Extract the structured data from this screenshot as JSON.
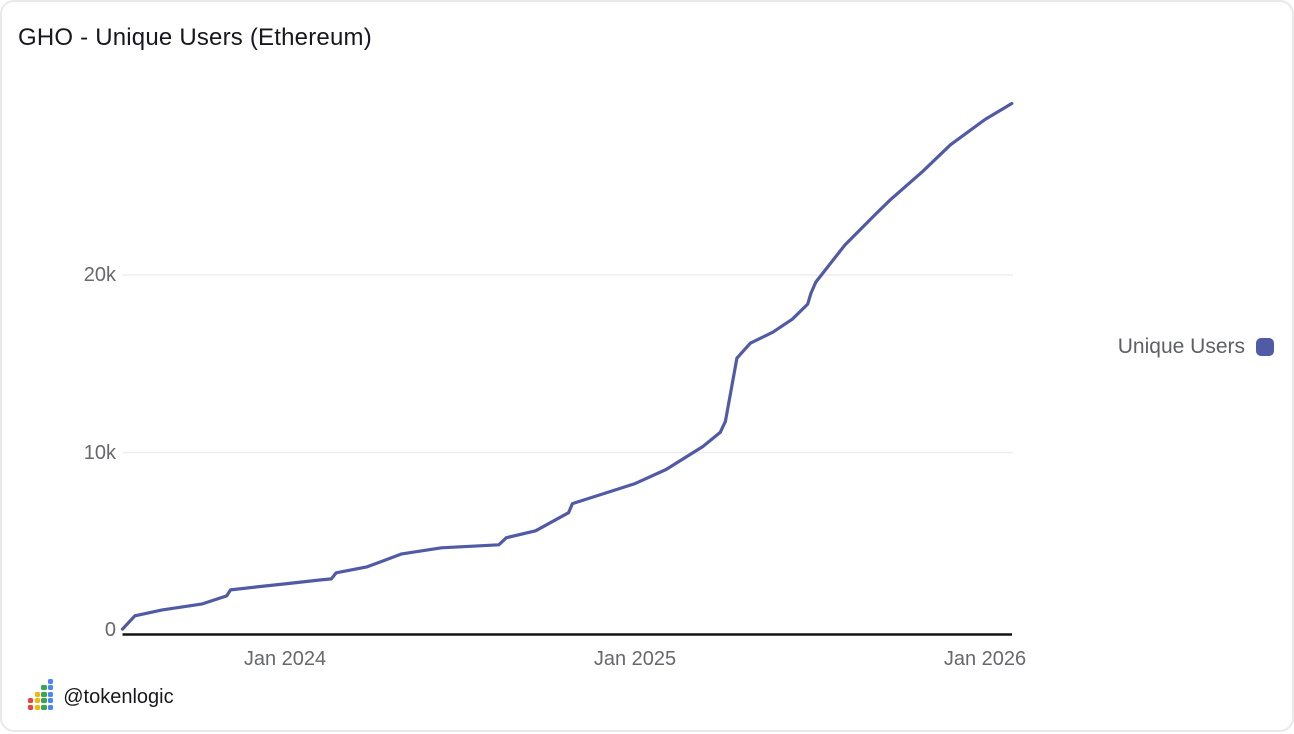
{
  "header": {
    "title": "GHO - Unique Users (Ethereum)"
  },
  "legend": {
    "label": "Unique Users"
  },
  "footer": {
    "handle": "@tokenlogic",
    "logo_icon": "mini-bar-chart-icon",
    "logo_columns": [
      {
        "color": "#e8453c",
        "cells": 2
      },
      {
        "color": "#f5b50a",
        "cells": 3
      },
      {
        "color": "#37a852",
        "cells": 4
      },
      {
        "color": "#4c86f5",
        "cells": 5
      }
    ]
  },
  "colors": {
    "series": "#515AA5",
    "grid": "#EDEDED",
    "axis": "#141414",
    "tick_text": "#66686d",
    "card_border": "#e9e9e9"
  },
  "chart_data": {
    "type": "line",
    "title": "GHO - Unique Users (Ethereum)",
    "xlabel": "",
    "ylabel": "",
    "grid": "horizontal-only",
    "legend_position": "right",
    "ylim": [
      0,
      30000
    ],
    "xlim_dates": [
      "2023-07-14",
      "2026-01-29"
    ],
    "yticks": [
      {
        "label": "0",
        "value": 0
      },
      {
        "label": "10k",
        "value": 10000
      },
      {
        "label": "20k",
        "value": 20000
      }
    ],
    "xticks": [
      {
        "label": "Jan 2024",
        "t": 2024
      },
      {
        "label": "Jan 2025",
        "t": 2025
      },
      {
        "label": "Jan 2026",
        "t": 2026
      }
    ],
    "series": [
      {
        "name": "Unique Users",
        "color": "#515AA5",
        "points": [
          {
            "date": "2023-07-14",
            "value": 50
          },
          {
            "date": "2023-07-27",
            "value": 800
          },
          {
            "date": "2023-08-25",
            "value": 1130
          },
          {
            "date": "2023-10-06",
            "value": 1470
          },
          {
            "date": "2023-11-01",
            "value": 1920
          },
          {
            "date": "2023-11-05",
            "value": 2260
          },
          {
            "date": "2023-12-02",
            "value": 2430
          },
          {
            "date": "2024-01-01",
            "value": 2600
          },
          {
            "date": "2024-02-08",
            "value": 2820
          },
          {
            "date": "2024-02-19",
            "value": 2880
          },
          {
            "date": "2024-02-24",
            "value": 3220
          },
          {
            "date": "2024-03-26",
            "value": 3560
          },
          {
            "date": "2024-05-01",
            "value": 4290
          },
          {
            "date": "2024-06-12",
            "value": 4630
          },
          {
            "date": "2024-08-11",
            "value": 4800
          },
          {
            "date": "2024-08-19",
            "value": 5200
          },
          {
            "date": "2024-09-19",
            "value": 5590
          },
          {
            "date": "2024-10-23",
            "value": 6610
          },
          {
            "date": "2024-10-27",
            "value": 7120
          },
          {
            "date": "2024-11-26",
            "value": 7630
          },
          {
            "date": "2025-01-01",
            "value": 8250
          },
          {
            "date": "2025-02-03",
            "value": 9040
          },
          {
            "date": "2025-03-11",
            "value": 10340
          },
          {
            "date": "2025-03-29",
            "value": 11130
          },
          {
            "date": "2025-04-04",
            "value": 11750
          },
          {
            "date": "2025-04-16",
            "value": 15310
          },
          {
            "date": "2025-04-30",
            "value": 16160
          },
          {
            "date": "2025-05-23",
            "value": 16780
          },
          {
            "date": "2025-06-13",
            "value": 17510
          },
          {
            "date": "2025-06-29",
            "value": 18360
          },
          {
            "date": "2025-07-02",
            "value": 18980
          },
          {
            "date": "2025-07-07",
            "value": 19600
          },
          {
            "date": "2025-08-07",
            "value": 21690
          },
          {
            "date": "2025-09-09",
            "value": 23450
          },
          {
            "date": "2025-09-25",
            "value": 24290
          },
          {
            "date": "2025-10-27",
            "value": 25820
          },
          {
            "date": "2025-11-26",
            "value": 27340
          },
          {
            "date": "2026-01-01",
            "value": 28760
          },
          {
            "date": "2026-01-29",
            "value": 29660
          }
        ]
      }
    ]
  }
}
